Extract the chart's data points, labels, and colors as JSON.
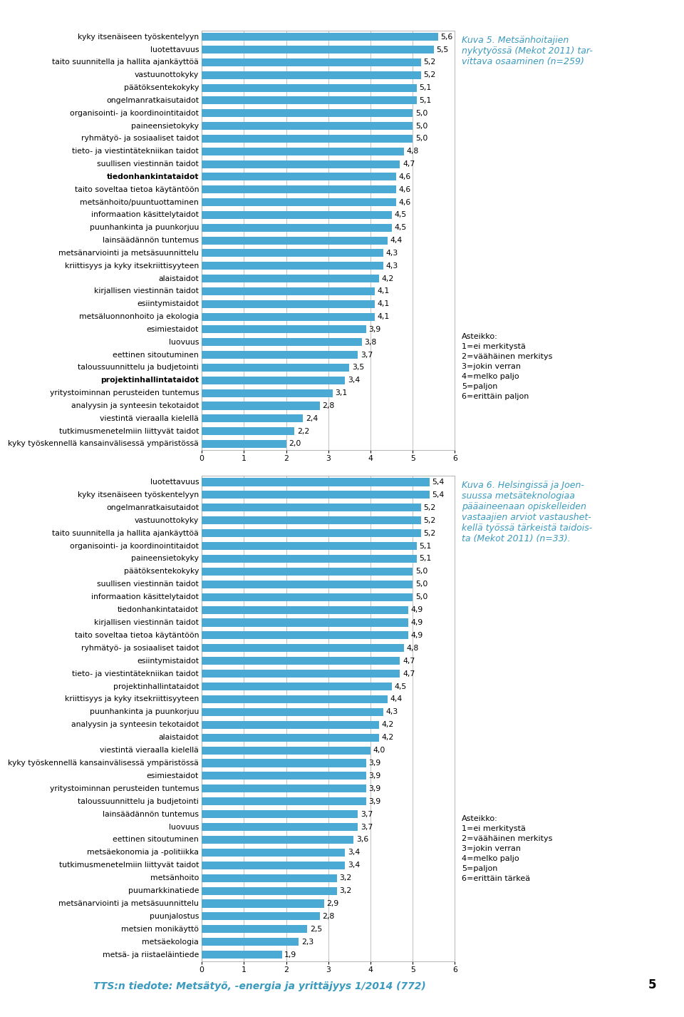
{
  "chart1": {
    "title": "Kuva 5. Metsänhoitajien\nnykytyössä (Mekot 2011) tar-\nvittava osaaminen (n=259)",
    "labels": [
      "kyky itsenäiseen työskentelyyn",
      "luotettavuus",
      "taito suunnitella ja hallita ajankäyttöä",
      "vastuunottokyky",
      "päätöksentekokyky",
      "ongelmanratkaisutaidot",
      "organisointi- ja koordinointitaidot",
      "paineensietokyky",
      "ryhmätyö- ja sosiaaliset taidot",
      "tieto- ja viestintätekniikan taidot",
      "suullisen viestinnän taidot",
      "tiedonhankintataidot",
      "taito soveltaa tietoa käytäntöön",
      "metsänhoito/puuntuottaminen",
      "informaation käsittelytaidot",
      "puunhankinta ja puunkorjuu",
      "lainsäädännön tuntemus",
      "metsänarviointi ja metsäsuunnittelu",
      "kriittisyys ja kyky itsekriittisyyteen",
      "alaistaidot",
      "kirjallisen viestinnän taidot",
      "esiintymistaidot",
      "metsäluonnonhoito ja ekologia",
      "esimiestaidot",
      "luovuus",
      "eettinen sitoutuminen",
      "taloussuunnittelu ja budjetointi",
      "projektinhallintataidot",
      "yritystoiminnan perusteiden tuntemus",
      "analyysin ja synteesin tekotaidot",
      "viestintä vieraalla kielellä",
      "tutkimusmenetelmiin liittyvät taidot",
      "kyky työskennellä kansainvälisessä ympäristössä"
    ],
    "values": [
      5.6,
      5.5,
      5.2,
      5.2,
      5.1,
      5.1,
      5.0,
      5.0,
      5.0,
      4.8,
      4.7,
      4.6,
      4.6,
      4.6,
      4.5,
      4.5,
      4.4,
      4.3,
      4.3,
      4.2,
      4.1,
      4.1,
      4.1,
      3.9,
      3.8,
      3.7,
      3.5,
      3.4,
      3.1,
      2.8,
      2.4,
      2.2,
      2.0
    ],
    "bold_labels": [
      "tiedonhankintataidot",
      "projektinhallintataidot"
    ],
    "scale_text": "Asteikko:\n1=ei merkitystä\n2=väähäinen merkitys\n3=jokin verran\n4=melko paljo\n5=paljon\n6=erittäin paljon"
  },
  "chart2": {
    "title": "Kuva 6. Helsingissä ja Joen-\nsuussa metsäteknologiaa\npääaineenaan opiskelleiden\nvastaajien arviot vastaushet-\nkellä työssä tärkeistä taidois-\nta (Mekot 2011) (n=33).",
    "labels": [
      "luotettavuus",
      "kyky itsenäiseen työskentelyyn",
      "ongelmanratkaisutaidot",
      "vastuunottokyky",
      "taito suunnitella ja hallita ajankäyttöä",
      "organisointi- ja koordinointitaidot",
      "paineensietokyky",
      "päätöksentekokyky",
      "suullisen viestinnän taidot",
      "informaation käsittelytaidot",
      "tiedonhankintataidot",
      "kirjallisen viestinnän taidot",
      "taito soveltaa tietoa käytäntöön",
      "ryhmätyö- ja sosiaaliset taidot",
      "esiintymistaidot",
      "tieto- ja viestintätekniikan taidot",
      "projektinhallintataidot",
      "kriittisyys ja kyky itsekriittisyyteen",
      "puunhankinta ja puunkorjuu",
      "analyysin ja synteesin tekotaidot",
      "alaistaidot",
      "viestintä vieraalla kielellä",
      "kyky työskennellä kansainvälisessä ympäristössä",
      "esimiestaidot",
      "yritystoiminnan perusteiden tuntemus",
      "taloussuunnittelu ja budjetointi",
      "lainsäädännön tuntemus",
      "luovuus",
      "eettinen sitoutuminen",
      "metsäekonomia ja -politiikka",
      "tutkimusmenetelmiin liittyvät taidot",
      "metsänhoito",
      "puumarkkinatiede",
      "metsänarviointi ja metsäsuunnittelu",
      "puunjalostus",
      "metsien monikäyttö",
      "metsäekologia",
      "metsä- ja riistaeläintiede"
    ],
    "values": [
      5.4,
      5.4,
      5.2,
      5.2,
      5.2,
      5.1,
      5.1,
      5.0,
      5.0,
      5.0,
      4.9,
      4.9,
      4.9,
      4.8,
      4.7,
      4.7,
      4.5,
      4.4,
      4.3,
      4.2,
      4.2,
      4.0,
      3.9,
      3.9,
      3.9,
      3.9,
      3.7,
      3.7,
      3.6,
      3.4,
      3.4,
      3.2,
      3.2,
      2.9,
      2.8,
      2.5,
      2.3,
      1.9
    ],
    "bold_labels": [],
    "scale_text": "Asteikko:\n1=ei merkitystä\n2=väähäinen merkitys\n3=jokin verran\n4=melko paljo\n5=paljon\n6=erittäin tärkeä"
  },
  "bar_color": "#4baad4",
  "footer": "TTS:n tiedote: Metsätyö, -energia ja yrittäjyys 1/2014 (772)",
  "page_number": "5",
  "title_color": "#3a9abf",
  "grid_color": "#aaaaaa",
  "bar_height": 0.62
}
